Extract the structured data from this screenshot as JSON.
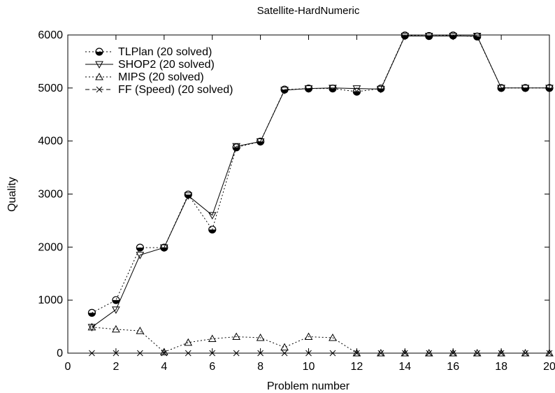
{
  "chart_data": {
    "type": "line",
    "title": "Satellite-HardNumeric",
    "xlabel": "Problem number",
    "ylabel": "Quality",
    "xlim": [
      0,
      20
    ],
    "ylim": [
      0,
      6000
    ],
    "xticks": [
      0,
      2,
      4,
      6,
      8,
      10,
      12,
      14,
      16,
      18,
      20
    ],
    "yticks": [
      0,
      1000,
      2000,
      3000,
      4000,
      5000,
      6000
    ],
    "grid": false,
    "legend_position": "top-left",
    "x": [
      1,
      2,
      3,
      4,
      5,
      6,
      7,
      8,
      9,
      10,
      11,
      12,
      13,
      14,
      15,
      16,
      17,
      18,
      19,
      20
    ],
    "series": [
      {
        "name": "TLPlan (20 solved)",
        "marker": "circle",
        "line": "dotted",
        "values": [
          760,
          1000,
          1990,
          1990,
          2990,
          2330,
          3880,
          3990,
          4970,
          4990,
          4990,
          4930,
          4990,
          5990,
          5980,
          5990,
          5970,
          5000,
          5000,
          5000
        ]
      },
      {
        "name": "SHOP2 (20 solved)",
        "marker": "triangle-down",
        "line": "solid",
        "values": [
          490,
          820,
          1850,
          1990,
          2970,
          2600,
          3900,
          3990,
          4960,
          4990,
          5000,
          4990,
          4980,
          5980,
          5980,
          5980,
          5980,
          5000,
          5000,
          5000
        ]
      },
      {
        "name": "MIPS (20 solved)",
        "marker": "triangle-up",
        "line": "dotted",
        "values": [
          490,
          450,
          420,
          20,
          200,
          270,
          310,
          290,
          110,
          310,
          290,
          0,
          0,
          0,
          0,
          0,
          0,
          0,
          0,
          0
        ]
      },
      {
        "name": "FF (Speed) (20 solved)",
        "marker": "cross",
        "line": "dashed",
        "values": [
          0,
          0,
          0,
          0,
          0,
          0,
          0,
          0,
          0,
          0,
          0,
          0,
          0,
          0,
          0,
          0,
          0,
          0,
          0,
          0
        ]
      }
    ]
  }
}
